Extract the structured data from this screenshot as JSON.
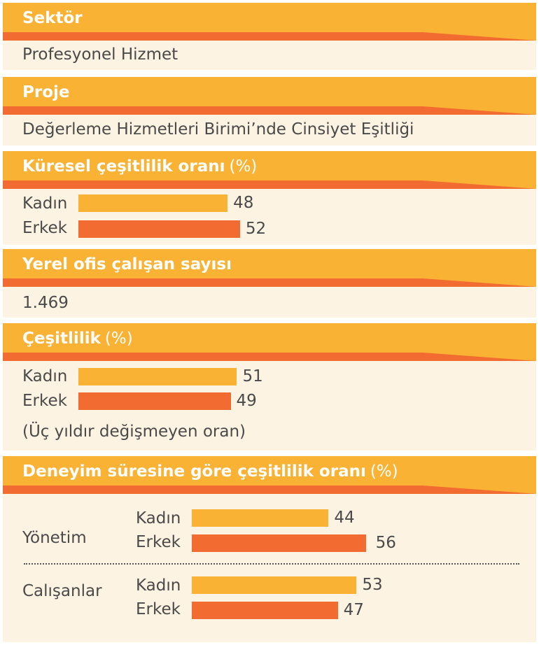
{
  "colors": {
    "header": "#f9b233",
    "header_stripe": "#f26b30",
    "body": "#fdf3e2",
    "kadin": "#f9b233",
    "erkek": "#f26b30"
  },
  "sektor": {
    "title": "Sektör",
    "value": "Profesyonel Hizmet"
  },
  "proje": {
    "title": "Proje",
    "value": "Değerleme Hizmetleri Birimi’nde Cinsiyet Eşitliği"
  },
  "kuresel": {
    "title": "Küresel çeşitlilik oranı",
    "unit": "(%)"
  },
  "yerel": {
    "title": "Yerel ofis çalışan sayısı",
    "value": "1.469"
  },
  "cesitlilik": {
    "title": "Çeşitlilik",
    "unit": "(%)",
    "note": "(Üç yıldır değişmeyen oran)"
  },
  "deneyim": {
    "title": "Deneyim süresine göre çeşitlilik oranı",
    "unit": "(%)"
  },
  "chart_data": [
    {
      "type": "bar",
      "title": "Küresel çeşitlilik oranı (%)",
      "categories": [
        "Kadın",
        "Erkek"
      ],
      "values": [
        48,
        52
      ]
    },
    {
      "type": "bar",
      "title": "Çeşitlilik (%)",
      "categories": [
        "Kadın",
        "Erkek"
      ],
      "values": [
        51,
        49
      ]
    },
    {
      "type": "bar",
      "title": "Deneyim süresine göre çeşitlilik oranı (%)",
      "groups": [
        {
          "name": "Yönetim",
          "categories": [
            "Kadın",
            "Erkek"
          ],
          "values": [
            44,
            56
          ]
        },
        {
          "name": "Calışanlar",
          "categories": [
            "Kadın",
            "Erkek"
          ],
          "values": [
            53,
            47
          ]
        }
      ]
    }
  ]
}
